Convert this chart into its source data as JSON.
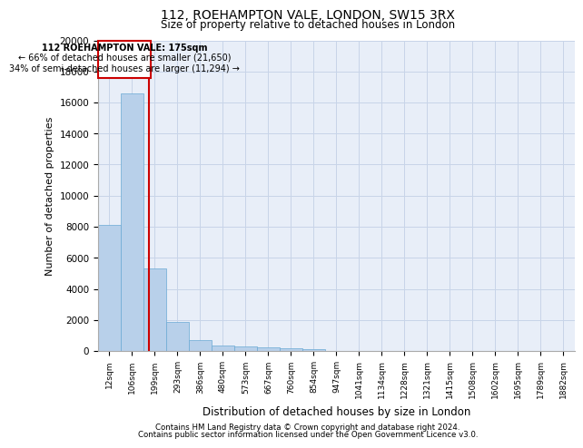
{
  "title_line1": "112, ROEHAMPTON VALE, LONDON, SW15 3RX",
  "title_line2": "Size of property relative to detached houses in London",
  "xlabel": "Distribution of detached houses by size in London",
  "ylabel": "Number of detached properties",
  "footnote_line1": "Contains HM Land Registry data © Crown copyright and database right 2024.",
  "footnote_line2": "Contains public sector information licensed under the Open Government Licence v3.0.",
  "annotation_line1": "112 ROEHAMPTON VALE: 175sqm",
  "annotation_line2": "← 66% of detached houses are smaller (21,650)",
  "annotation_line3": "34% of semi-detached houses are larger (11,294) →",
  "bar_labels": [
    "12sqm",
    "106sqm",
    "199sqm",
    "293sqm",
    "386sqm",
    "480sqm",
    "573sqm",
    "667sqm",
    "760sqm",
    "854sqm",
    "947sqm",
    "1041sqm",
    "1134sqm",
    "1228sqm",
    "1321sqm",
    "1415sqm",
    "1508sqm",
    "1602sqm",
    "1695sqm",
    "1789sqm",
    "1882sqm"
  ],
  "bar_values": [
    8100,
    16600,
    5300,
    1850,
    700,
    360,
    270,
    210,
    170,
    130,
    0,
    0,
    0,
    0,
    0,
    0,
    0,
    0,
    0,
    0,
    0
  ],
  "bar_color": "#b8d0ea",
  "bar_edgecolor": "#6aaad4",
  "ylim": [
    0,
    20000
  ],
  "yticks": [
    0,
    2000,
    4000,
    6000,
    8000,
    10000,
    12000,
    14000,
    16000,
    18000,
    20000
  ],
  "annotation_box_color": "#ffffff",
  "annotation_box_edgecolor": "#cc0000",
  "red_line_color": "#cc0000",
  "grid_color": "#c8d4e8",
  "bg_color": "#e8eef8"
}
